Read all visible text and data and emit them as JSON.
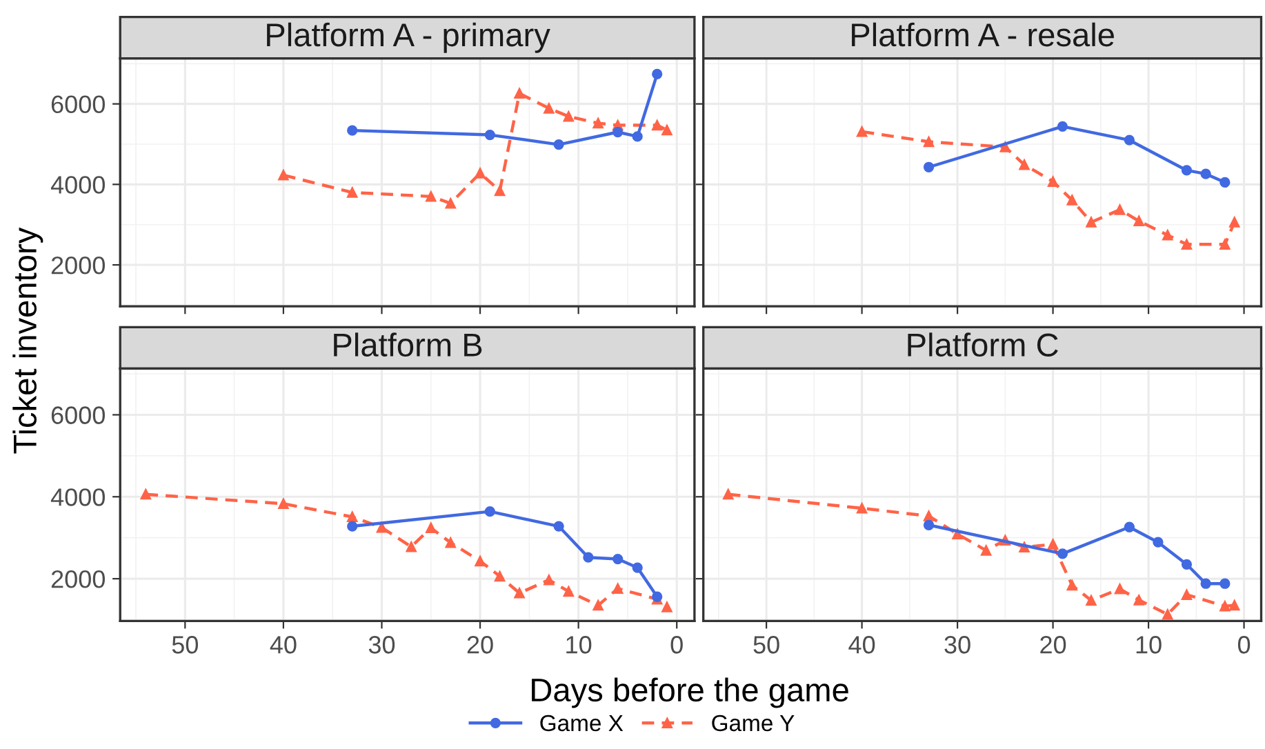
{
  "chart_data": [
    {
      "type": "line",
      "title": "Platform A - primary",
      "xlabel": "Days before the game",
      "ylabel": "Ticket inventory",
      "xlim": [
        56.6,
        -1.8
      ],
      "ylim": [
        970,
        7130
      ],
      "xticks": [
        50,
        40,
        30,
        20,
        10,
        0
      ],
      "yticks": [
        2000,
        4000,
        6000
      ],
      "grid": true,
      "legend": "bottom",
      "tick_labels": "y",
      "series": [
        {
          "name": "Game X",
          "color": "#4169e1",
          "marker": "circle",
          "line_style": "solid",
          "x": [
            33,
            19,
            12,
            6,
            4,
            2
          ],
          "values": [
            5340,
            5230,
            4990,
            5300,
            5190,
            6740
          ]
        },
        {
          "name": "Game Y",
          "color": "#ff6347",
          "marker": "triangle",
          "line_style": "dashed",
          "x": [
            40,
            33,
            25,
            23,
            20,
            18,
            16,
            13,
            11,
            8,
            6,
            2,
            1
          ],
          "values": [
            4230,
            3800,
            3700,
            3530,
            4280,
            3840,
            6260,
            5890,
            5690,
            5520,
            5470,
            5470,
            5350
          ]
        }
      ]
    },
    {
      "type": "line",
      "title": "Platform A - resale",
      "xlim": [
        56.6,
        -1.8
      ],
      "ylim": [
        970,
        7130
      ],
      "xticks": [
        50,
        40,
        30,
        20,
        10,
        0
      ],
      "yticks": [
        2000,
        4000,
        6000
      ],
      "grid": true,
      "tick_labels": false,
      "series": [
        {
          "name": "Game X",
          "color": "#4169e1",
          "marker": "circle",
          "line_style": "solid",
          "x": [
            33,
            19,
            12,
            6,
            4,
            2
          ],
          "values": [
            4430,
            5440,
            5100,
            4350,
            4260,
            4050
          ]
        },
        {
          "name": "Game Y",
          "color": "#ff6347",
          "marker": "triangle",
          "line_style": "dashed",
          "x": [
            40,
            33,
            25,
            23,
            20,
            18,
            16,
            13,
            11,
            8,
            6,
            2,
            1
          ],
          "values": [
            5310,
            5060,
            4930,
            4490,
            4070,
            3610,
            3060,
            3370,
            3090,
            2740,
            2510,
            2510,
            3060
          ]
        }
      ]
    },
    {
      "type": "line",
      "title": "Platform B",
      "xlim": [
        56.6,
        -1.8
      ],
      "ylim": [
        970,
        7130
      ],
      "xticks": [
        50,
        40,
        30,
        20,
        10,
        0
      ],
      "yticks": [
        2000,
        4000,
        6000
      ],
      "grid": true,
      "series": [
        {
          "name": "Game X",
          "color": "#4169e1",
          "marker": "circle",
          "line_style": "solid",
          "x": [
            33,
            19,
            12,
            9,
            6,
            4,
            2
          ],
          "values": [
            3280,
            3640,
            3280,
            2520,
            2480,
            2270,
            1560
          ]
        },
        {
          "name": "Game Y",
          "color": "#ff6347",
          "marker": "triangle",
          "line_style": "dashed",
          "x": [
            54,
            40,
            33,
            30,
            27,
            25,
            23,
            20,
            18,
            16,
            13,
            11,
            8,
            6,
            2,
            1
          ],
          "values": [
            4060,
            3830,
            3510,
            3250,
            2780,
            3240,
            2880,
            2430,
            2060,
            1650,
            1970,
            1690,
            1350,
            1760,
            1500,
            1310
          ]
        }
      ]
    },
    {
      "type": "line",
      "title": "Platform C",
      "xlim": [
        56.6,
        -1.8
      ],
      "ylim": [
        970,
        7130
      ],
      "xticks": [
        50,
        40,
        30,
        20,
        10,
        0
      ],
      "yticks": [
        2000,
        4000,
        6000
      ],
      "grid": true,
      "tick_labels": "x",
      "series": [
        {
          "name": "Game X",
          "color": "#4169e1",
          "marker": "circle",
          "line_style": "solid",
          "x": [
            33,
            19,
            12,
            9,
            6,
            4,
            2
          ],
          "values": [
            3310,
            2610,
            3260,
            2890,
            2350,
            1880,
            1880
          ]
        },
        {
          "name": "Game Y",
          "color": "#ff6347",
          "marker": "triangle",
          "line_style": "dashed",
          "x": [
            54,
            40,
            33,
            30,
            27,
            25,
            23,
            20,
            18,
            16,
            13,
            11,
            8,
            6,
            2,
            1
          ],
          "values": [
            4060,
            3720,
            3530,
            3090,
            2690,
            2940,
            2770,
            2840,
            1840,
            1470,
            1750,
            1480,
            1130,
            1610,
            1330,
            1350
          ]
        }
      ]
    }
  ]
}
